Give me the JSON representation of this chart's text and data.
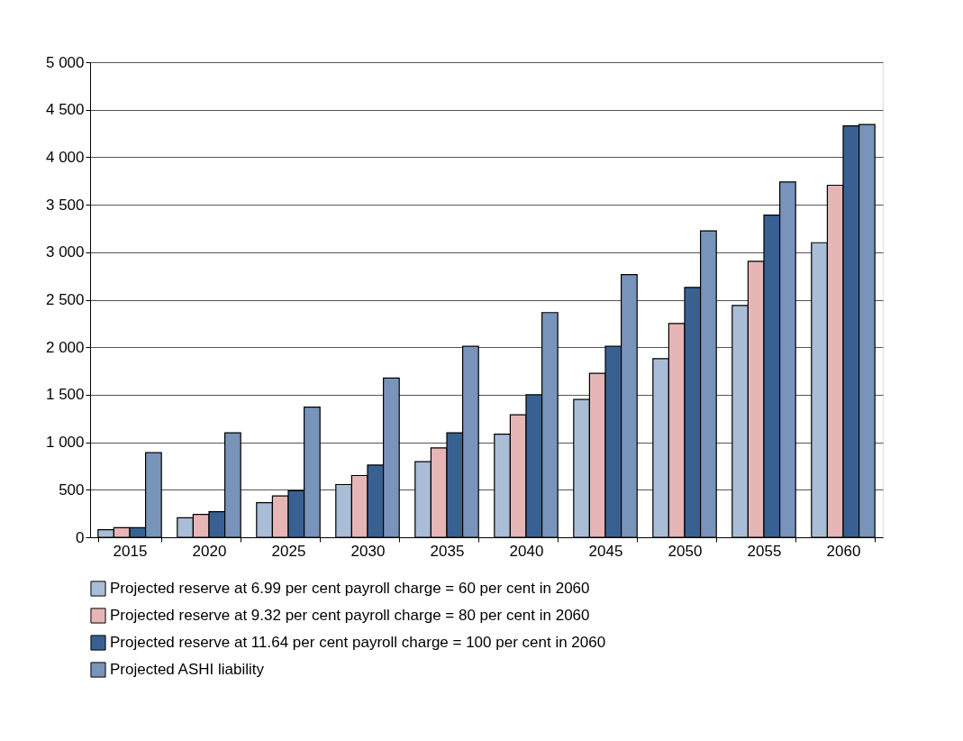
{
  "chart_data": {
    "type": "bar",
    "categories": [
      "2015",
      "2020",
      "2025",
      "2030",
      "2035",
      "2040",
      "2045",
      "2050",
      "2055",
      "2060"
    ],
    "series": [
      {
        "name": "Projected reserve at 6.99 per cent payroll charge = 60 per cent in 2060",
        "color": "#a9bdd6",
        "values": [
          80,
          205,
          365,
          555,
          795,
          1085,
          1450,
          1880,
          2440,
          3100
        ]
      },
      {
        "name": "Projected reserve at 9.32 per cent payroll charge = 80 per cent in 2060",
        "color": "#e6b5b5",
        "values": [
          100,
          240,
          435,
          650,
          940,
          1290,
          1725,
          2250,
          2905,
          3705
        ]
      },
      {
        "name": "Projected reserve at 11.64 per cent payroll charge = 100 per cent in 2060",
        "color": "#386192",
        "values": [
          100,
          270,
          490,
          760,
          1100,
          1500,
          2010,
          2630,
          3390,
          4330
        ]
      },
      {
        "name": "Projected ASHI liability",
        "color": "#7894bb",
        "values": [
          890,
          1100,
          1370,
          1675,
          2010,
          2365,
          2765,
          3225,
          3740,
          4345
        ]
      }
    ],
    "ylim": [
      0,
      5000
    ],
    "yticks": [
      0,
      500,
      {
        "value": 1000,
        "label": "1 000"
      },
      {
        "value": 1500,
        "label": "1 500"
      },
      {
        "value": 2000,
        "label": "2 000"
      },
      {
        "value": 2500,
        "label": "2 500"
      },
      {
        "value": 3000,
        "label": "3 000"
      },
      {
        "value": 3500,
        "label": "3 500"
      },
      {
        "value": 4000,
        "label": "4 000"
      },
      {
        "value": 4500,
        "label": "4 500"
      },
      {
        "value": 5000,
        "label": "5 000"
      }
    ],
    "grid": "y",
    "legend": "bottom"
  }
}
